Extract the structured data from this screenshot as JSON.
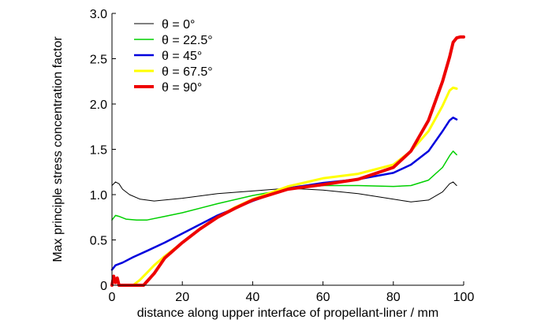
{
  "chart_data": {
    "type": "line",
    "xlabel": "distance along upper interface of propellant-liner / mm",
    "ylabel": "Max principle stress concentration factor",
    "xlim": [
      0,
      100
    ],
    "ylim": [
      0,
      3.0
    ],
    "xticks": [
      "0",
      "20",
      "40",
      "60",
      "80",
      "100"
    ],
    "yticks": [
      "0",
      "0.5",
      "1.0",
      "1.5",
      "2.0",
      "2.5",
      "3.0"
    ],
    "grid": false,
    "legend_position": "top-left",
    "series": [
      {
        "name": "θ = 0°",
        "color": "#000000",
        "x": [
          0,
          1,
          2,
          3,
          5,
          8,
          12,
          20,
          30,
          40,
          50,
          60,
          70,
          80,
          85,
          90,
          94,
          96,
          97,
          98
        ],
        "y": [
          1.1,
          1.14,
          1.12,
          1.06,
          1.0,
          0.95,
          0.93,
          0.96,
          1.01,
          1.04,
          1.07,
          1.05,
          1.01,
          0.95,
          0.92,
          0.94,
          1.03,
          1.12,
          1.14,
          1.1
        ]
      },
      {
        "name": "θ = 22.5°",
        "color": "#00d000",
        "x": [
          0,
          1,
          2,
          4,
          7,
          10,
          15,
          20,
          30,
          40,
          50,
          60,
          70,
          80,
          85,
          90,
          94,
          96,
          97,
          98
        ],
        "y": [
          0.72,
          0.77,
          0.76,
          0.73,
          0.72,
          0.72,
          0.76,
          0.8,
          0.9,
          0.99,
          1.06,
          1.1,
          1.1,
          1.09,
          1.1,
          1.16,
          1.3,
          1.43,
          1.48,
          1.44
        ]
      },
      {
        "name": "θ = 45°",
        "color": "#0000dd",
        "x": [
          0,
          1,
          3,
          6,
          10,
          15,
          20,
          25,
          30,
          40,
          50,
          60,
          70,
          80,
          85,
          90,
          94,
          96,
          97,
          98
        ],
        "y": [
          0.17,
          0.22,
          0.25,
          0.31,
          0.38,
          0.47,
          0.57,
          0.67,
          0.77,
          0.93,
          1.07,
          1.13,
          1.17,
          1.24,
          1.33,
          1.48,
          1.7,
          1.82,
          1.85,
          1.83
        ]
      },
      {
        "name": "θ = 67.5°",
        "color": "#ffff00",
        "x": [
          6,
          8,
          10,
          12,
          15,
          20,
          25,
          30,
          35,
          40,
          50,
          60,
          70,
          80,
          85,
          90,
          94,
          96,
          97,
          98
        ],
        "y": [
          0,
          0.06,
          0.14,
          0.22,
          0.32,
          0.47,
          0.62,
          0.75,
          0.86,
          0.95,
          1.09,
          1.18,
          1.23,
          1.33,
          1.48,
          1.7,
          1.98,
          2.15,
          2.18,
          2.17
        ]
      },
      {
        "name": "θ = 90°",
        "color": "#ee0000",
        "x": [
          0,
          0.5,
          1,
          1.5,
          2,
          9,
          12,
          15,
          20,
          25,
          30,
          35,
          40,
          50,
          60,
          70,
          80,
          85,
          90,
          94,
          96,
          97,
          98,
          99,
          100
        ],
        "y": [
          0,
          0.1,
          0.03,
          0.08,
          0,
          0,
          0.13,
          0.3,
          0.47,
          0.62,
          0.75,
          0.85,
          0.94,
          1.06,
          1.11,
          1.17,
          1.3,
          1.48,
          1.82,
          2.25,
          2.52,
          2.68,
          2.73,
          2.74,
          2.74
        ]
      }
    ]
  }
}
